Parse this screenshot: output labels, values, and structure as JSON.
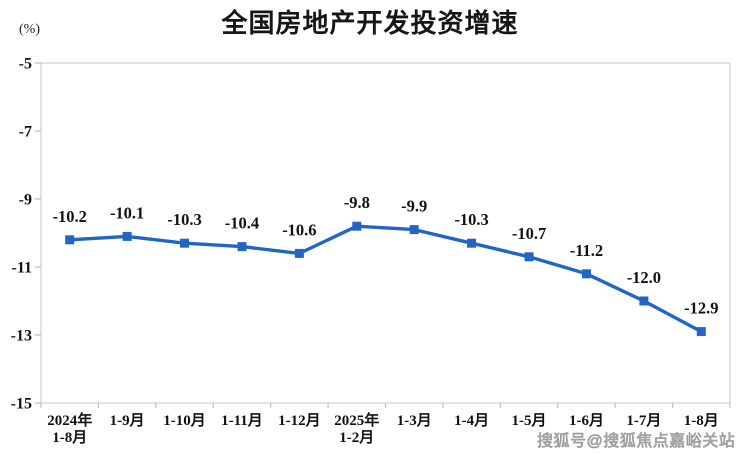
{
  "header": {
    "title": "全国房地产开发投资增速",
    "unit_label": "(%)"
  },
  "watermark": {
    "text": "搜狐号@搜狐焦点嘉峪关站"
  },
  "chart_data": {
    "type": "line",
    "title": "全国房地产开发投资增速",
    "ylabel": "(%)",
    "categories": [
      [
        "2024年",
        "1-8月"
      ],
      [
        "1-9月"
      ],
      [
        "1-10月"
      ],
      [
        "1-11月"
      ],
      [
        "1-12月"
      ],
      [
        "2025年",
        "1-2月"
      ],
      [
        "1-3月"
      ],
      [
        "1-4月"
      ],
      [
        "1-5月"
      ],
      [
        "1-6月"
      ],
      [
        "1-7月"
      ],
      [
        "1-8月"
      ]
    ],
    "values": [
      -10.2,
      -10.1,
      -10.3,
      -10.4,
      -10.6,
      -9.8,
      -9.9,
      -10.3,
      -10.7,
      -11.2,
      -12.0,
      -12.9
    ],
    "data_labels": [
      "-10.2",
      "-10.1",
      "-10.3",
      "-10.4",
      "-10.6",
      "-9.8",
      "-9.9",
      "-10.3",
      "-10.7",
      "-11.2",
      "-12.0",
      "-12.9"
    ],
    "ylim": [
      -15,
      -5
    ],
    "y_ticks": [
      -5,
      -7,
      -9,
      -11,
      -13,
      -15
    ],
    "grid": false,
    "legend": "none",
    "marker": "square",
    "colors": {
      "line": "#2266C4",
      "marker": "#2266C4",
      "axis_border": "#D8D8D8",
      "tick": "#BFBFBF",
      "text": "#111111",
      "title": "#161616",
      "watermark": "#9C9C9C"
    }
  }
}
